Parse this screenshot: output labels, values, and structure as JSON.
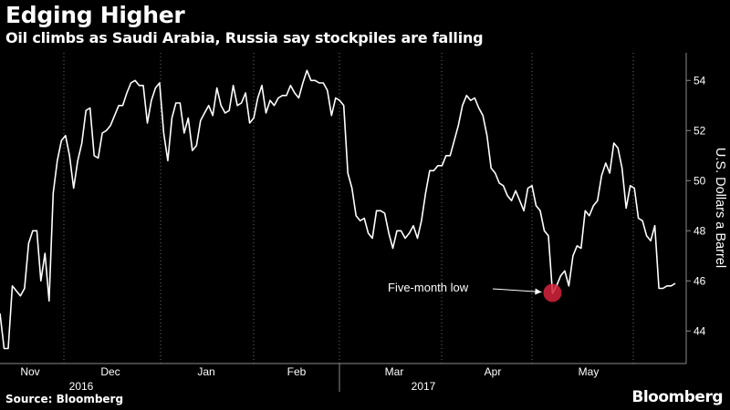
{
  "header": {
    "title": "Edging Higher",
    "subtitle": "Oil climbs as Saudi Arabia, Russia say stockpiles are falling"
  },
  "footer": {
    "source": "Source: Bloomberg",
    "brand": "Bloomberg"
  },
  "colors": {
    "background": "#000000",
    "line": "#ffffff",
    "grid": "#6e6e6e",
    "marker": "#d6233d"
  },
  "chart_data": {
    "type": "line",
    "title": "Edging Higher",
    "subtitle": "Oil climbs as Saudi Arabia, Russia say stockpiles are falling",
    "ylabel": "U.S. Dollars a Barrel",
    "ylim": [
      42.7,
      55.1
    ],
    "yticks": [
      44,
      46,
      48,
      50,
      52,
      54
    ],
    "yaxis_position": "right",
    "grid": "vertical dotted at month boundaries",
    "xlabels": [
      "Nov",
      "Dec",
      "Jan",
      "Feb",
      "Mar",
      "Apr",
      "May"
    ],
    "years": [
      "2016",
      "2017"
    ],
    "annotation": {
      "text": "Five-month low",
      "value": 45.52,
      "month": "May"
    },
    "series": [
      {
        "values": [
          44.7,
          43.3,
          43.3,
          45.8,
          45.6,
          45.4,
          45.7,
          47.5,
          48.0,
          48.0,
          46.0,
          47.1,
          45.2,
          49.5,
          50.8,
          51.6,
          51.8,
          51.0,
          49.7,
          50.8,
          51.5,
          52.8,
          52.9,
          51.0,
          50.9,
          51.9,
          52.0,
          52.2,
          52.6,
          53.0,
          53.0,
          53.5,
          53.9,
          54.0,
          53.8,
          53.8,
          52.3,
          53.2,
          53.7,
          53.9,
          51.9,
          50.8,
          52.5,
          53.1,
          53.1,
          51.9,
          52.5,
          51.2,
          51.4,
          52.4,
          52.7,
          53.0,
          52.6,
          53.7,
          53.0,
          52.7,
          52.8,
          53.8,
          53.0,
          53.1,
          53.5,
          52.3,
          52.5,
          53.3,
          53.8,
          52.7,
          53.2,
          53.0,
          53.3,
          53.4,
          53.4,
          53.8,
          53.5,
          53.3,
          53.9,
          54.4,
          54.0,
          54.0,
          53.9,
          53.9,
          53.6,
          52.6,
          53.3,
          53.2,
          53.0,
          50.3,
          49.7,
          48.6,
          48.4,
          48.5,
          47.9,
          47.7,
          48.8,
          48.8,
          48.7,
          47.9,
          47.3,
          48.0,
          48.0,
          47.7,
          47.9,
          48.2,
          47.7,
          48.4,
          49.5,
          50.4,
          50.4,
          50.6,
          50.6,
          51.0,
          51.0,
          51.6,
          52.2,
          53.0,
          53.4,
          53.2,
          53.3,
          52.9,
          52.6,
          51.8,
          50.5,
          50.3,
          49.9,
          49.8,
          49.4,
          49.2,
          49.6,
          49.2,
          48.8,
          49.7,
          49.8,
          49.0,
          48.8,
          48.0,
          47.8,
          45.5,
          45.8,
          46.2,
          46.4,
          45.8,
          47.0,
          47.4,
          47.3,
          48.8,
          48.6,
          49.0,
          49.2,
          50.2,
          50.7,
          50.3,
          51.5,
          51.3,
          50.5,
          48.9,
          49.8,
          49.7,
          48.5,
          48.4,
          47.8,
          47.6,
          48.2,
          45.7,
          45.7,
          45.8,
          45.8,
          45.9
        ]
      }
    ]
  }
}
